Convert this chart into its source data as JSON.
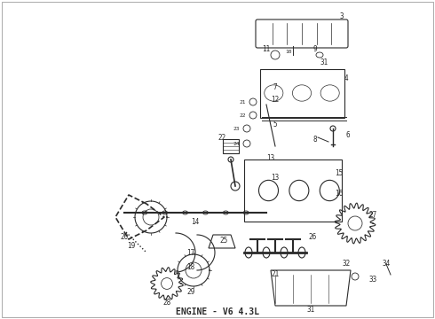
{
  "title": "ENGINE - V6 4.3L",
  "title_fontsize": 7,
  "background_color": "#ffffff",
  "border_color": "#000000",
  "diagram_color": "#2a2a2a",
  "fig_width": 4.9,
  "fig_height": 3.6,
  "dpi": 100
}
